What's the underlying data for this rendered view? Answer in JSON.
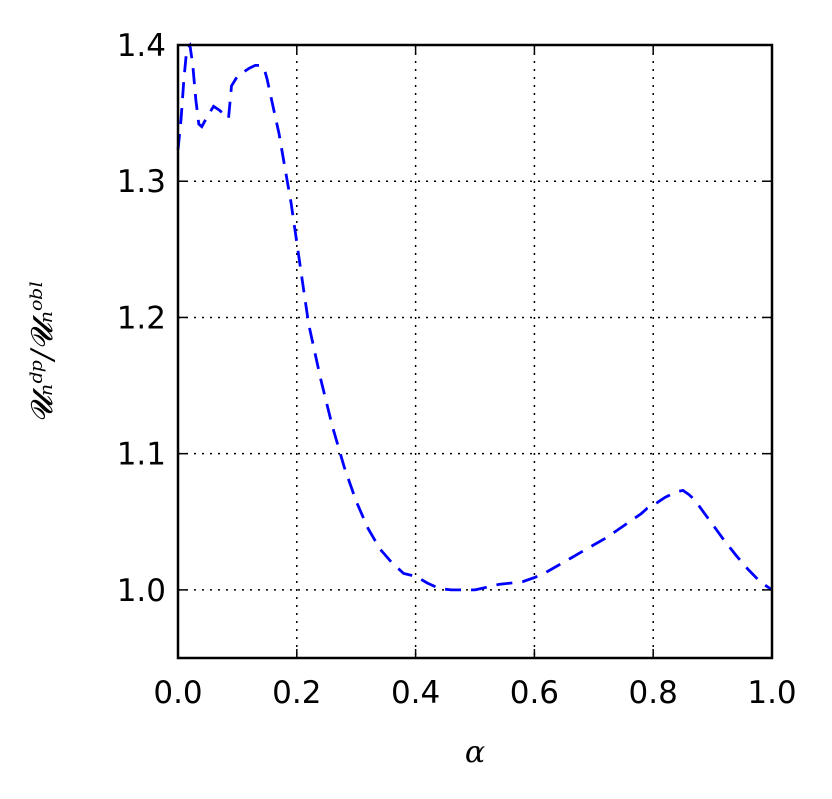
{
  "chart_data": {
    "type": "line",
    "title": "",
    "xlabel": "α",
    "ylabel": "𝓤ₙᵈᵖ/𝓤ₙᵒᵇˡ",
    "xlim": [
      0.0,
      1.0
    ],
    "ylim": [
      0.95,
      1.4
    ],
    "xticks": [
      "0.0",
      "0.2",
      "0.4",
      "0.6",
      "0.8",
      "1.0"
    ],
    "yticks": [
      "1.0",
      "1.1",
      "1.2",
      "1.3",
      "1.4"
    ],
    "grid": true,
    "series": [
      {
        "color": "#0000ff",
        "linestyle": "dashed",
        "x": [
          0.0,
          0.005,
          0.01,
          0.015,
          0.02,
          0.025,
          0.03,
          0.035,
          0.04,
          0.05,
          0.06,
          0.07,
          0.08,
          0.085,
          0.09,
          0.1,
          0.11,
          0.12,
          0.13,
          0.14,
          0.145,
          0.15,
          0.16,
          0.17,
          0.18,
          0.19,
          0.2,
          0.21,
          0.22,
          0.24,
          0.26,
          0.28,
          0.3,
          0.32,
          0.34,
          0.36,
          0.38,
          0.4,
          0.42,
          0.44,
          0.46,
          0.48,
          0.5,
          0.52,
          0.54,
          0.56,
          0.58,
          0.6,
          0.62,
          0.64,
          0.66,
          0.68,
          0.7,
          0.72,
          0.74,
          0.76,
          0.78,
          0.79,
          0.8,
          0.81,
          0.82,
          0.83,
          0.84,
          0.85,
          0.86,
          0.87,
          0.88,
          0.9,
          0.92,
          0.94,
          0.96,
          0.98,
          1.0
        ],
        "y": [
          1.323,
          1.345,
          1.375,
          1.398,
          1.4,
          1.385,
          1.36,
          1.342,
          1.34,
          1.348,
          1.355,
          1.352,
          1.348,
          1.346,
          1.37,
          1.377,
          1.38,
          1.383,
          1.385,
          1.385,
          1.383,
          1.375,
          1.355,
          1.335,
          1.31,
          1.285,
          1.255,
          1.225,
          1.195,
          1.155,
          1.12,
          1.09,
          1.065,
          1.045,
          1.03,
          1.02,
          1.012,
          1.01,
          1.005,
          1.001,
          1.0,
          1.0,
          1.0,
          1.002,
          1.004,
          1.005,
          1.006,
          1.009,
          1.013,
          1.018,
          1.023,
          1.028,
          1.033,
          1.038,
          1.044,
          1.05,
          1.056,
          1.06,
          1.062,
          1.065,
          1.068,
          1.07,
          1.072,
          1.073,
          1.07,
          1.066,
          1.06,
          1.048,
          1.036,
          1.025,
          1.015,
          1.006,
          1.0
        ]
      }
    ]
  }
}
